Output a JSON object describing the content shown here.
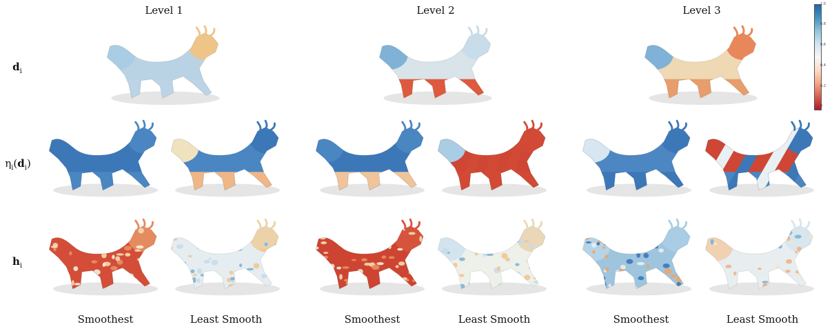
{
  "column_titles": [
    "Level 1",
    "Level 2",
    "Level 3"
  ],
  "row_labels": {
    "d": {
      "symbol": "d",
      "sub": "i"
    },
    "eta": {
      "prefix": "η",
      "psub": "i",
      "open": "(",
      "symbol": "d",
      "sub": "i",
      "close": ")"
    },
    "h": {
      "symbol": "h",
      "sub": "i"
    }
  },
  "bottom_labels": [
    "Smoothest",
    "Least Smooth",
    "Smoothest",
    "Least Smooth",
    "Smoothest",
    "Least Smooth"
  ],
  "colorbar": {
    "ticks": [
      "1,0",
      "0,8",
      "0,6",
      "0,4",
      "0,2",
      "0"
    ],
    "colors": [
      "#2166ac",
      "#4393c3",
      "#92c5de",
      "#d1e5f0",
      "#f7f7f7",
      "#fddbc7",
      "#f4a582",
      "#d6604d",
      "#b2182b"
    ]
  },
  "palette": {
    "blue": "#3f7fbf",
    "lightblue": "#a9cde4",
    "pale": "#e9eef2",
    "cream": "#f3dfb9",
    "orange": "#ec9a6a",
    "red": "#cc3b33"
  },
  "panels": [
    {
      "name": "d-level-1",
      "body": "#b9d3e4",
      "head": "#efc488",
      "legs": "#bcd4e6",
      "tail": "#a9cde4",
      "pattern": "none"
    },
    {
      "name": "d-level-2",
      "body": "#d8e3ea",
      "head": "#c8dde9",
      "legs": "#de5a3e",
      "tail": "#7fb2d6",
      "pattern": "none"
    },
    {
      "name": "d-level-3",
      "body": "#eed9b4",
      "head": "#e8885a",
      "legs": "#e79d6c",
      "tail": "#7fb2d6",
      "pattern": "none"
    },
    {
      "name": "eta-level-1-smoothest",
      "body": "#3c78b8",
      "head": "#4a86c2",
      "legs": "#4a86c2",
      "tail": "#3c78b8",
      "pattern": "none"
    },
    {
      "name": "eta-level-1-least-smooth",
      "body": "#4a86c2",
      "head": "#3c78b8",
      "legs": "#f0b686",
      "tail": "#f1e2bf",
      "pattern": "none"
    },
    {
      "name": "eta-level-2-smoothest",
      "body": "#3c78b8",
      "head": "#4a86c2",
      "legs": "#f0c49a",
      "tail": "#4a86c2",
      "pattern": "none"
    },
    {
      "name": "eta-level-2-least-smooth",
      "body": "#cf4634",
      "head": "#d24a35",
      "legs": "#d24a35",
      "tail": "#a9cde4",
      "pattern": "bands"
    },
    {
      "name": "eta-level-3-smoothest",
      "body": "#4d87c3",
      "head": "#3c78b8",
      "legs": "#3c78b8",
      "tail": "#d7e6f0",
      "pattern": "none"
    },
    {
      "name": "eta-level-3-least-smooth",
      "body": "#cf4634",
      "head": "#3c78b8",
      "legs": "#4a86c2",
      "tail": "#cf4634",
      "pattern": "stripes"
    },
    {
      "name": "h-level-1-smoothest",
      "body": "#d34d38",
      "head": "#e48b5f",
      "legs": "#d34d38",
      "tail": "#d34d38",
      "pattern": "blobs-warm"
    },
    {
      "name": "h-level-1-least-smooth",
      "body": "#e6edf0",
      "head": "#ecd2a8",
      "legs": "#e6edf0",
      "tail": "#e6edf0",
      "pattern": "blobs-cool"
    },
    {
      "name": "h-level-2-smoothest",
      "body": "#cd4532",
      "head": "#d6543b",
      "legs": "#cd4532",
      "tail": "#cd4532",
      "pattern": "blobs-warm"
    },
    {
      "name": "h-level-2-least-smooth",
      "body": "#eef0ea",
      "head": "#e9d7b7",
      "legs": "#eef0ea",
      "tail": "#d3e4ee",
      "pattern": "blobs-cool"
    },
    {
      "name": "h-level-3-smoothest",
      "body": "#9fc5de",
      "head": "#a9cde4",
      "legs": "#9fc5de",
      "tail": "#b7d4e6",
      "pattern": "blobs-mixed"
    },
    {
      "name": "h-level-3-least-smooth",
      "body": "#e8eef0",
      "head": "#d8e6ee",
      "legs": "#e8eef0",
      "tail": "#f0d2b3",
      "pattern": "blobs-fine"
    }
  ]
}
